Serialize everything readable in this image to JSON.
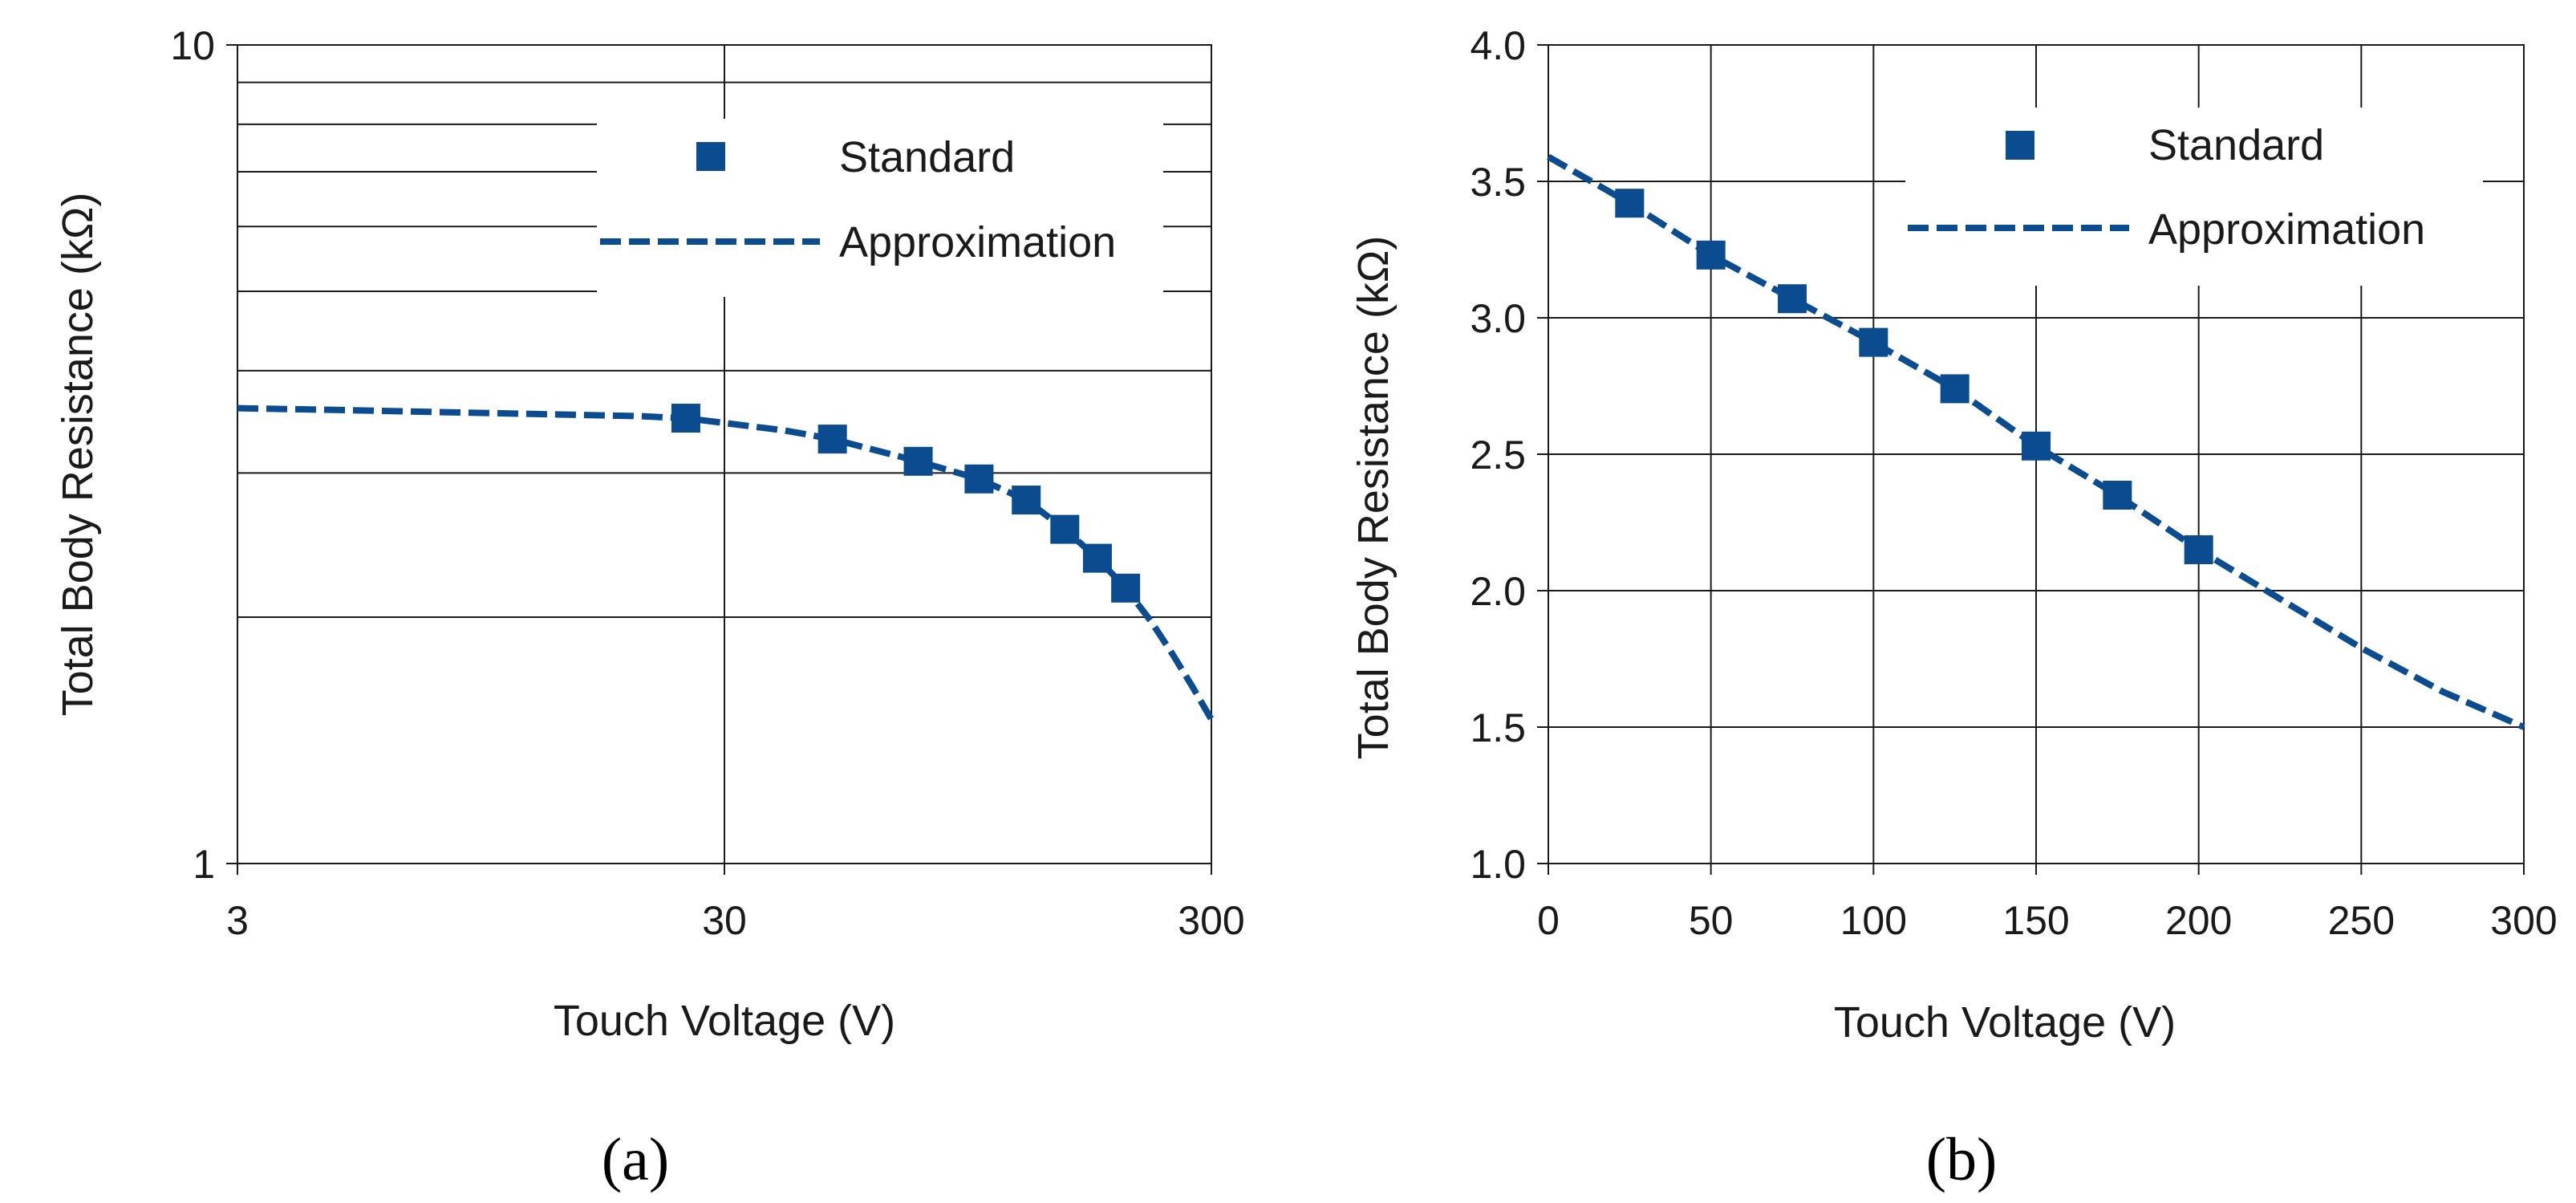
{
  "colors": {
    "series": "#0b4c91",
    "grid": "#1a1a1a",
    "text": "#1a1a1a"
  },
  "chart_data": [
    {
      "type": "scatter+line",
      "panel_label": "(a)",
      "xlabel": "Touch Voltage (V)",
      "ylabel": "Total Body Resistance (kΩ)",
      "xscale": "log",
      "yscale": "log",
      "xlim": [
        3,
        300
      ],
      "ylim": [
        1,
        10
      ],
      "xticks": [
        3,
        30,
        300
      ],
      "xtick_labels": [
        "3",
        "30",
        "300"
      ],
      "yticks": [
        1,
        10
      ],
      "ytick_labels": [
        "1",
        "10"
      ],
      "legend_position": "top-right",
      "series": [
        {
          "name": "Standard",
          "kind": "markers",
          "marker": "square",
          "x": [
            25,
            50,
            75,
            100,
            125,
            150,
            175,
            200
          ],
          "y": [
            3.5,
            3.3,
            3.1,
            2.95,
            2.78,
            2.56,
            2.36,
            2.17
          ]
        },
        {
          "name": "Approximation",
          "kind": "dashed-line",
          "x": [
            3,
            5,
            10,
            20,
            25,
            40,
            50,
            75,
            100,
            125,
            150,
            175,
            200,
            225,
            250,
            275,
            300
          ],
          "y": [
            3.6,
            3.58,
            3.55,
            3.52,
            3.5,
            3.38,
            3.3,
            3.1,
            2.95,
            2.78,
            2.56,
            2.36,
            2.17,
            1.98,
            1.8,
            1.64,
            1.5
          ]
        }
      ]
    },
    {
      "type": "scatter+line",
      "panel_label": "(b)",
      "xlabel": "Touch Voltage (V)",
      "ylabel": "Total Body Resistance (kΩ)",
      "xscale": "linear",
      "yscale": "linear",
      "xlim": [
        0,
        300
      ],
      "ylim": [
        1.0,
        4.0
      ],
      "xticks": [
        0,
        50,
        100,
        150,
        200,
        250,
        300
      ],
      "xtick_labels": [
        "0",
        "50",
        "100",
        "150",
        "200",
        "250",
        "300"
      ],
      "yticks": [
        1.0,
        1.5,
        2.0,
        2.5,
        3.0,
        3.5,
        4.0
      ],
      "ytick_labels": [
        "1.0",
        "1.5",
        "2.0",
        "2.5",
        "3.0",
        "3.5",
        "4.0"
      ],
      "legend_position": "top-right",
      "series": [
        {
          "name": "Standard",
          "kind": "markers",
          "marker": "square",
          "x": [
            25,
            50,
            75,
            100,
            125,
            150,
            175,
            200
          ],
          "y": [
            3.42,
            3.23,
            3.07,
            2.91,
            2.74,
            2.53,
            2.35,
            2.15
          ]
        },
        {
          "name": "Approximation",
          "kind": "dashed-line",
          "x": [
            0,
            25,
            50,
            75,
            100,
            125,
            150,
            175,
            200,
            225,
            250,
            275,
            300
          ],
          "y": [
            3.59,
            3.42,
            3.23,
            3.07,
            2.91,
            2.74,
            2.53,
            2.35,
            2.15,
            1.97,
            1.79,
            1.63,
            1.5
          ]
        }
      ]
    }
  ]
}
